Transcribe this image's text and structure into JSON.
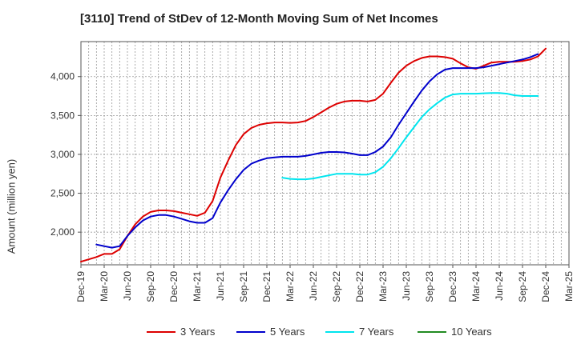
{
  "chart_data": {
    "type": "line",
    "title": "[3110]  Trend of StDev of 12-Month Moving Sum of Net Incomes",
    "xlabel": "",
    "ylabel": "Amount (million yen)",
    "x_ticks": [
      "Dec-19",
      "Mar-20",
      "Jun-20",
      "Sep-20",
      "Dec-20",
      "Mar-21",
      "Jun-21",
      "Sep-21",
      "Dec-21",
      "Mar-22",
      "Jun-22",
      "Sep-22",
      "Dec-22",
      "Mar-23",
      "Jun-23",
      "Sep-23",
      "Dec-23",
      "Mar-24",
      "Jun-24",
      "Sep-24",
      "Dec-24",
      "Mar-25"
    ],
    "y_ticks": [
      2000,
      2500,
      3000,
      3500,
      4000
    ],
    "ylim": [
      1580,
      4450
    ],
    "grid": true,
    "legend_position": "bottom",
    "series": [
      {
        "name": "3 Years",
        "color": "#dd0000",
        "start_index": 0,
        "values": [
          1620,
          1650,
          1680,
          1720,
          1720,
          1780,
          1950,
          2100,
          2200,
          2260,
          2280,
          2280,
          2270,
          2250,
          2230,
          2210,
          2250,
          2400,
          2700,
          2920,
          3120,
          3260,
          3340,
          3380,
          3400,
          3410,
          3410,
          3405,
          3410,
          3430,
          3480,
          3540,
          3600,
          3650,
          3680,
          3690,
          3690,
          3680,
          3700,
          3780,
          3920,
          4050,
          4140,
          4200,
          4240,
          4260,
          4260,
          4250,
          4230,
          4170,
          4120,
          4100,
          4140,
          4180,
          4190,
          4190,
          4190,
          4200,
          4220,
          4260,
          4360
        ]
      },
      {
        "name": "5 Years",
        "color": "#0000cc",
        "start_index": 2,
        "values": [
          1840,
          1820,
          1800,
          1820,
          1950,
          2060,
          2150,
          2200,
          2220,
          2220,
          2200,
          2170,
          2140,
          2120,
          2120,
          2180,
          2380,
          2540,
          2680,
          2800,
          2880,
          2920,
          2950,
          2960,
          2970,
          2970,
          2970,
          2980,
          3000,
          3020,
          3030,
          3030,
          3025,
          3010,
          2990,
          2990,
          3030,
          3100,
          3220,
          3380,
          3530,
          3680,
          3820,
          3940,
          4030,
          4090,
          4110,
          4110,
          4110,
          4110,
          4120,
          4140,
          4160,
          4180,
          4200,
          4220,
          4250,
          4290
        ]
      },
      {
        "name": "7 Years",
        "color": "#00e5ee",
        "start_index": 26,
        "values": [
          2700,
          2685,
          2680,
          2680,
          2690,
          2710,
          2730,
          2750,
          2750,
          2750,
          2740,
          2740,
          2770,
          2840,
          2950,
          3080,
          3220,
          3350,
          3480,
          3580,
          3660,
          3730,
          3770,
          3780,
          3780,
          3780,
          3785,
          3790,
          3790,
          3780,
          3760,
          3750,
          3750,
          3750
        ]
      },
      {
        "name": "10 Years",
        "color": "#228b22",
        "start_index": 0,
        "values": []
      }
    ]
  }
}
